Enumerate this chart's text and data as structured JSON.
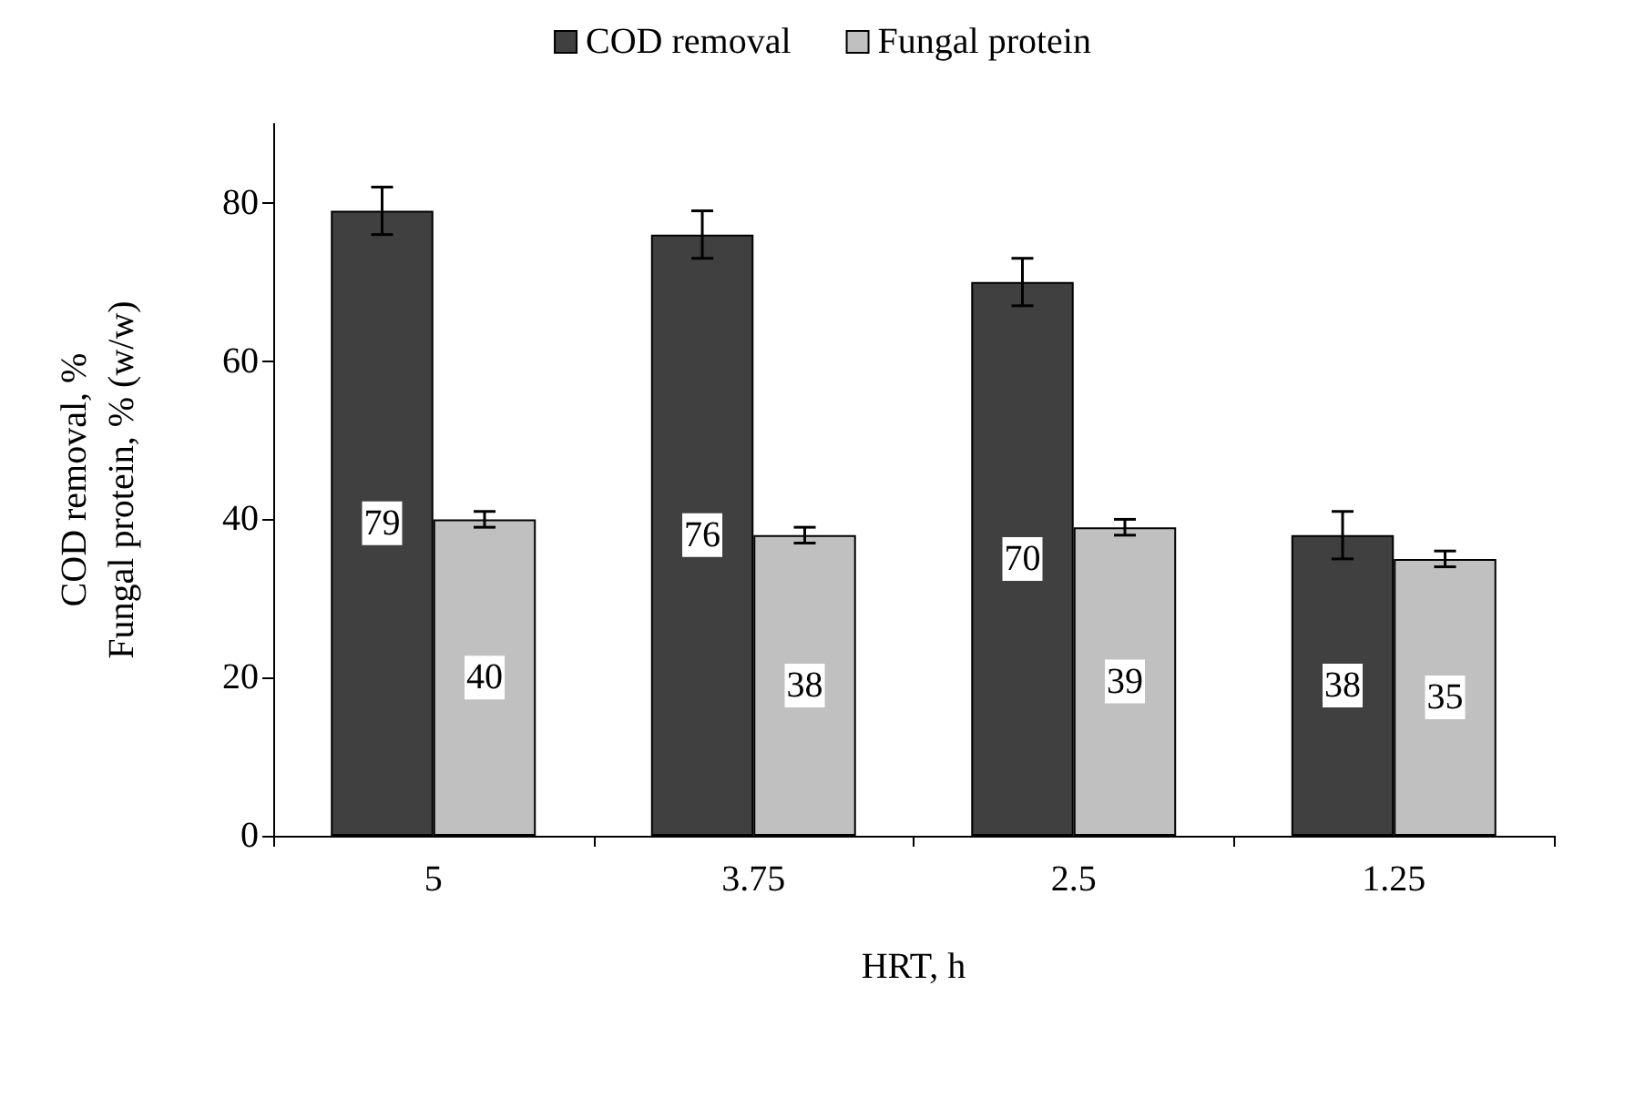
{
  "chart_data": {
    "type": "bar",
    "xlabel": "HRT, h",
    "ylabel": "COD removal, %\nFungal protein, % (w/w)",
    "categories": [
      "5",
      "3.75",
      "2.5",
      "1.25"
    ],
    "series": [
      {
        "name": "COD removal",
        "color": "#404040",
        "values": [
          79,
          76,
          70,
          38
        ],
        "errors": [
          3,
          3,
          3,
          3
        ]
      },
      {
        "name": "Fungal protein",
        "color": "#c0c0c0",
        "values": [
          40,
          38,
          39,
          35
        ],
        "errors": [
          1,
          1,
          1,
          1
        ]
      }
    ],
    "ylim": [
      0,
      90
    ],
    "yticks": [
      0,
      20,
      40,
      60,
      80
    ],
    "grid": false,
    "legend": "top",
    "data_labels": true
  }
}
